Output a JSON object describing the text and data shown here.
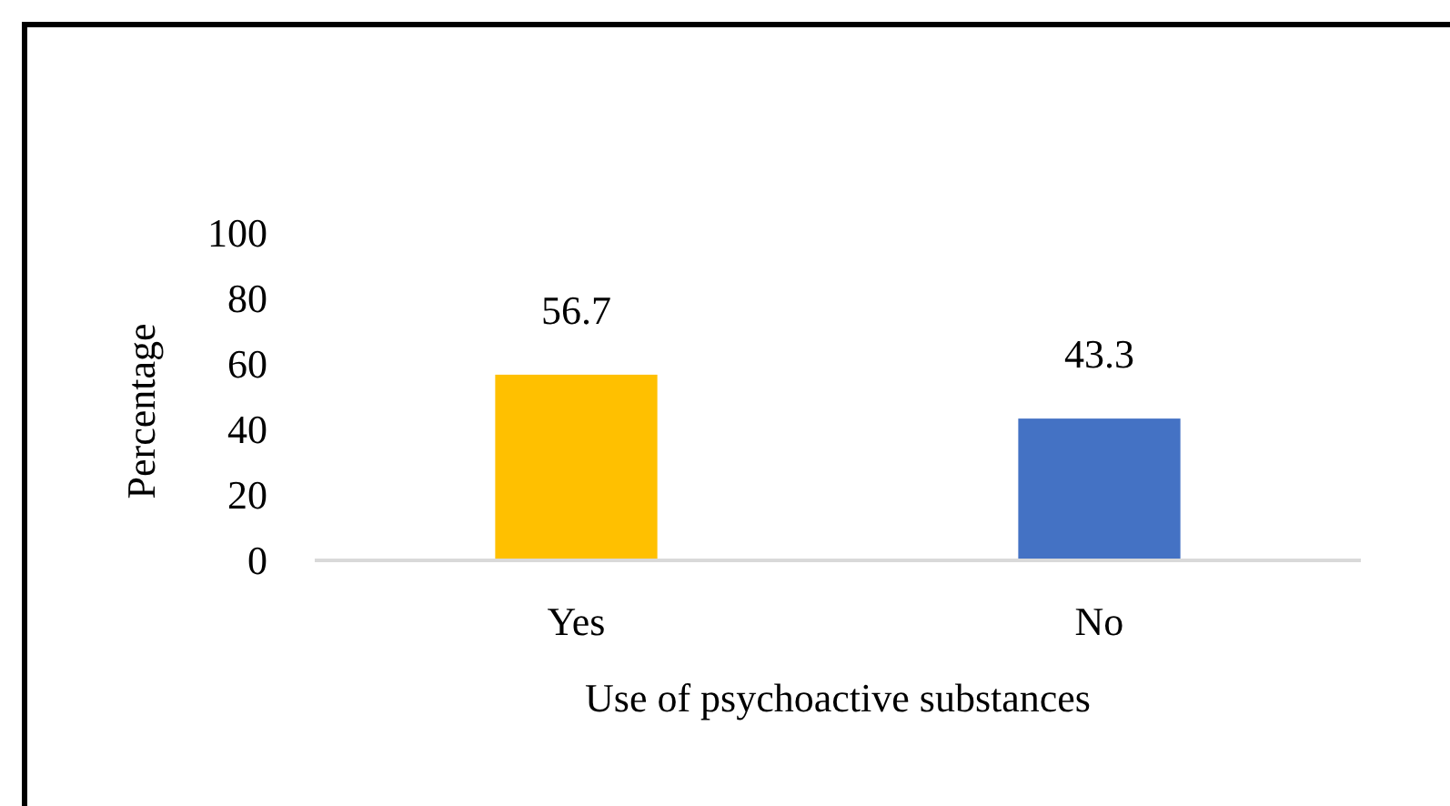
{
  "chart_data": {
    "type": "bar",
    "xlabel": "Use of psychoactive substances",
    "ylabel": "Percentage",
    "categories": [
      "Yes",
      "No"
    ],
    "values": [
      56.7,
      43.3
    ],
    "colors": [
      "#ffc000",
      "#4472c4"
    ],
    "ylim": [
      0,
      100
    ],
    "yticks": [
      0,
      20,
      40,
      60,
      80,
      100
    ],
    "data_labels": true,
    "grid": false
  }
}
